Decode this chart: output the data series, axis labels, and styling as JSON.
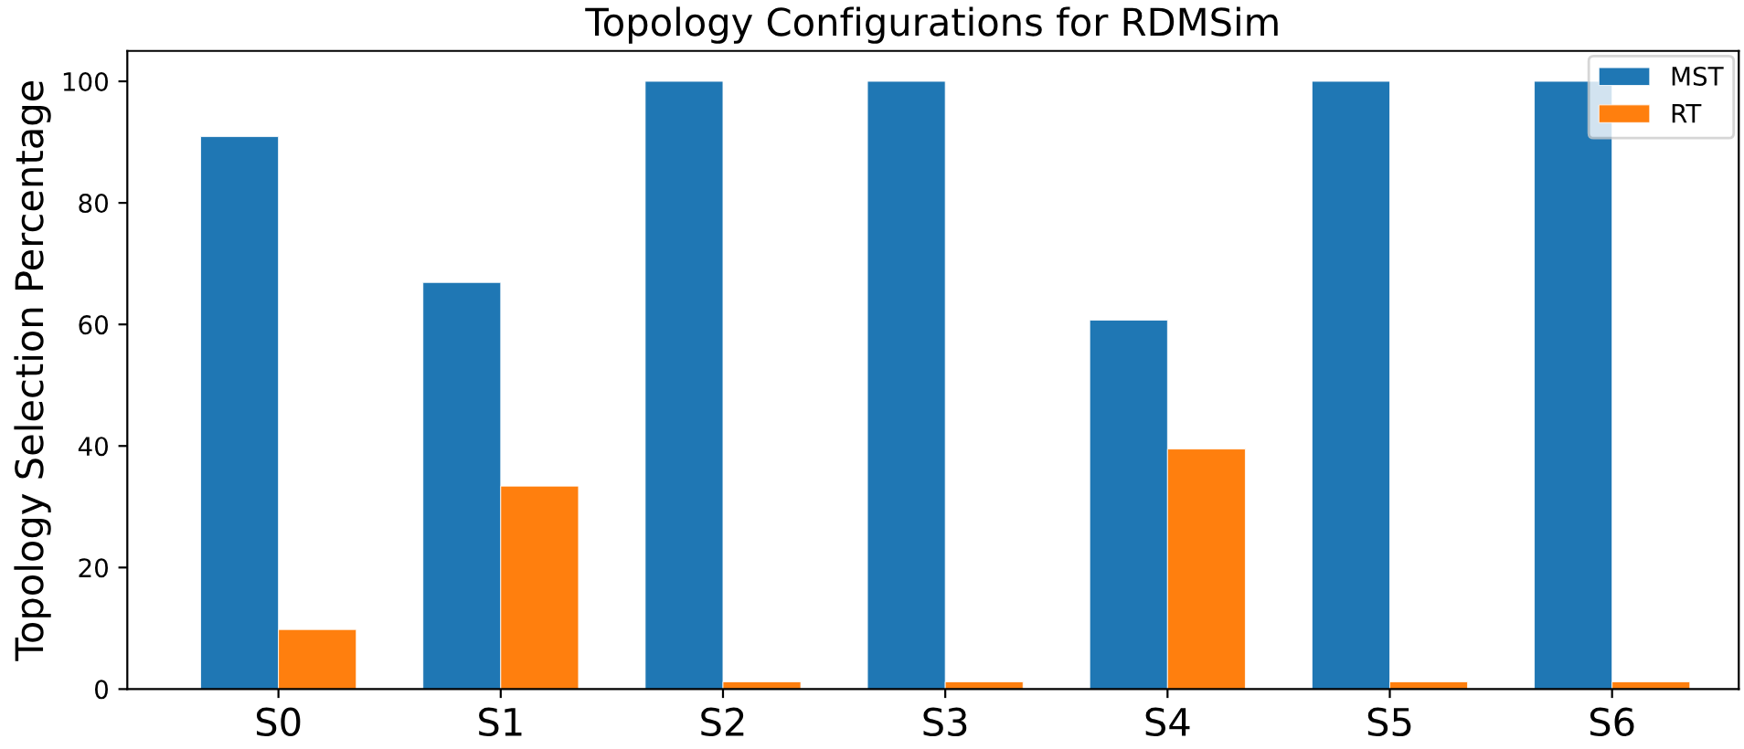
{
  "chart_data": {
    "type": "bar",
    "title": "Topology Configurations for RDMSim",
    "ylabel": "Topology Selection Percentage",
    "categories": [
      "S0",
      "S1",
      "S2",
      "S3",
      "S4",
      "S5",
      "S6"
    ],
    "series": [
      {
        "name": "MST",
        "color": "#1f77b4",
        "values": [
          90.9,
          66.9,
          100,
          100,
          60.7,
          100,
          100
        ]
      },
      {
        "name": "RT",
        "color": "#ff7f0e",
        "values": [
          9.8,
          33.4,
          1.2,
          1.2,
          39.5,
          1.2,
          1.2
        ]
      }
    ],
    "ylim": [
      0,
      105
    ],
    "yticks": [
      0,
      20,
      40,
      60,
      80,
      100
    ],
    "grid": false,
    "legend": "top right"
  }
}
